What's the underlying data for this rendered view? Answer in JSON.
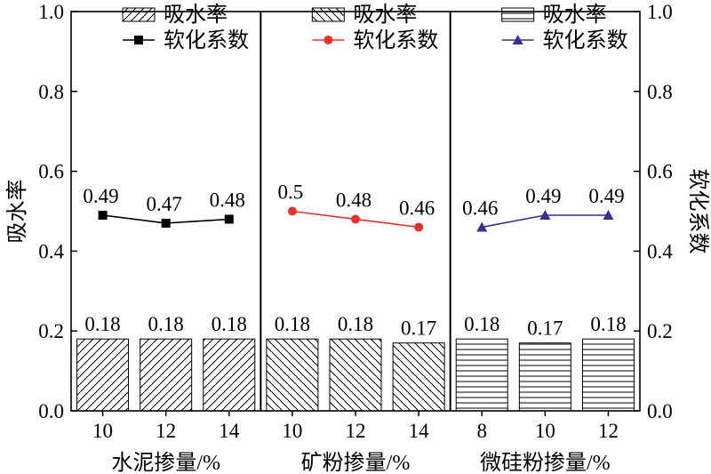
{
  "chart_data": {
    "type": "bar",
    "y_left_label": "吸水率",
    "y_right_label": "软化系数",
    "y_range": [
      0.0,
      1.0
    ],
    "y_ticks": [
      "0.0",
      "0.2",
      "0.4",
      "0.6",
      "0.8",
      "1.0"
    ],
    "grid": false,
    "legend_placement": "top of each panel",
    "panels": [
      {
        "xlabel": "水泥掺量/%",
        "categories": [
          "10",
          "12",
          "14"
        ],
        "bar_series": {
          "name": "吸水率",
          "values": [
            0.18,
            0.18,
            0.18
          ],
          "labels": [
            "0.18",
            "0.18",
            "0.18"
          ],
          "pattern": "diagonal-up"
        },
        "line_series": {
          "name": "软化系数",
          "values": [
            0.49,
            0.47,
            0.48
          ],
          "labels": [
            "0.49",
            "0.47",
            "0.48"
          ],
          "color": "#000000",
          "marker": "square"
        }
      },
      {
        "xlabel": "矿粉掺量/%",
        "categories": [
          "10",
          "12",
          "14"
        ],
        "bar_series": {
          "name": "吸水率",
          "values": [
            0.18,
            0.18,
            0.17
          ],
          "labels": [
            "0.18",
            "0.18",
            "0.17"
          ],
          "pattern": "diagonal-down"
        },
        "line_series": {
          "name": "软化系数",
          "values": [
            0.5,
            0.48,
            0.46
          ],
          "labels": [
            "0.5",
            "0.48",
            "0.46"
          ],
          "color": "#e8312a",
          "marker": "circle"
        }
      },
      {
        "xlabel": "微硅粉掺量/%",
        "categories": [
          "8",
          "10",
          "12"
        ],
        "bar_series": {
          "name": "吸水率",
          "values": [
            0.18,
            0.17,
            0.18
          ],
          "labels": [
            "0.18",
            "0.17",
            "0.18"
          ],
          "pattern": "horizontal"
        },
        "line_series": {
          "name": "软化系数",
          "values": [
            0.46,
            0.49,
            0.49
          ],
          "labels": [
            "0.46",
            "0.49",
            "0.49"
          ],
          "color": "#35318e",
          "marker": "triangle"
        }
      }
    ]
  }
}
